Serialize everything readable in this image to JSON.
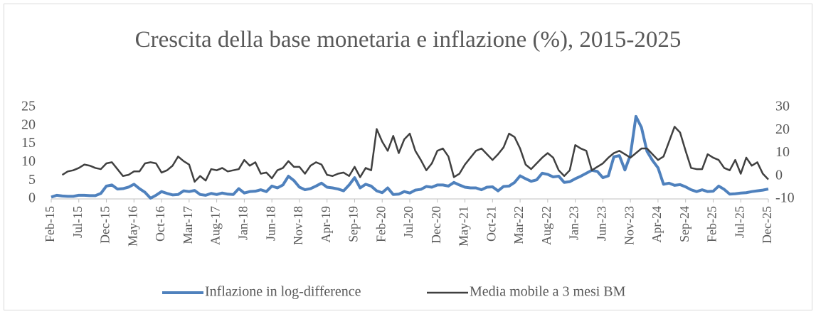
{
  "chart_data": {
    "type": "line",
    "title": "Crescita della base monetaria e inflazione (%), 2015-2025",
    "categories": [
      "Feb-15",
      null,
      null,
      null,
      null,
      "Jul-15",
      null,
      null,
      null,
      null,
      "Dec-15",
      null,
      null,
      null,
      null,
      "May-16",
      null,
      null,
      null,
      null,
      "Oct-16",
      null,
      null,
      null,
      null,
      "Mar-17",
      null,
      null,
      null,
      null,
      "Aug-17",
      null,
      null,
      null,
      null,
      "Jan-18",
      null,
      null,
      null,
      null,
      "Jun-18",
      null,
      null,
      null,
      null,
      "Nov-18",
      null,
      null,
      null,
      null,
      "Apr-19",
      null,
      null,
      null,
      null,
      "Sep-19",
      null,
      null,
      null,
      null,
      "Feb-20",
      null,
      null,
      null,
      null,
      "Jul-20",
      null,
      null,
      null,
      null,
      "Dec-20",
      null,
      null,
      null,
      null,
      "May-21",
      null,
      null,
      null,
      null,
      "Oct-21",
      null,
      null,
      null,
      null,
      "Mar-22",
      null,
      null,
      null,
      null,
      "Aug-22",
      null,
      null,
      null,
      null,
      "Jan-23",
      null,
      null,
      null,
      null,
      "Jun-23",
      null,
      null,
      null,
      null,
      "Nov-23",
      null,
      null,
      null,
      null,
      "Apr-24",
      null,
      null,
      null,
      null,
      "Sep-24",
      null,
      null,
      null,
      null,
      "Feb-25",
      null,
      null,
      null,
      null,
      "Jul-25",
      null,
      null,
      null,
      null,
      "Dec-25"
    ],
    "series": [
      {
        "name": "Inflazione in log-difference",
        "color": "#4f81bd",
        "axis": "y",
        "values": [
          0.5,
          1.0,
          0.8,
          0.7,
          0.7,
          1.0,
          1.0,
          0.9,
          0.9,
          1.5,
          3.5,
          3.8,
          2.7,
          2.8,
          3.2,
          4.0,
          2.8,
          1.8,
          0.2,
          1.0,
          2.0,
          1.5,
          1.1,
          1.2,
          2.2,
          2.0,
          2.3,
          1.2,
          1.0,
          1.5,
          1.2,
          1.6,
          1.3,
          1.2,
          2.8,
          1.6,
          2.0,
          2.1,
          2.5,
          2.0,
          3.5,
          3.0,
          3.8,
          6.2,
          5.0,
          3.2,
          2.5,
          2.8,
          3.5,
          4.3,
          3.2,
          3.0,
          2.7,
          2.2,
          3.8,
          5.8,
          3.0,
          4.0,
          3.5,
          2.2,
          1.7,
          3.0,
          1.2,
          1.3,
          2.0,
          1.6,
          2.4,
          2.6,
          3.4,
          3.2,
          3.8,
          3.8,
          3.5,
          4.5,
          3.8,
          3.2,
          3.0,
          3.0,
          2.5,
          3.2,
          3.3,
          2.2,
          3.4,
          3.5,
          4.5,
          6.3,
          5.5,
          4.8,
          5.2,
          7.0,
          6.7,
          6.0,
          6.2,
          4.5,
          4.7,
          5.5,
          6.2,
          7.0,
          7.8,
          7.5,
          5.8,
          6.3,
          11.5,
          11.8,
          7.9,
          12.0,
          22.5,
          19.5,
          13.0,
          10.5,
          8.5,
          4.0,
          4.3,
          3.7,
          3.9,
          3.3,
          2.5,
          2.0,
          2.5,
          2.0,
          2.1,
          3.5,
          2.6,
          1.3,
          1.4,
          1.6,
          1.7,
          2.0,
          2.2,
          2.4,
          2.7
        ]
      },
      {
        "name": "Media mobile a 3 mesi BM",
        "color": "#404040",
        "axis": "y2",
        "values": [
          null,
          null,
          0.5,
          2,
          2.5,
          3.5,
          5,
          4.5,
          3.5,
          3,
          5.5,
          6,
          3,
          0,
          0.5,
          2,
          2,
          5.5,
          6,
          5.5,
          1.5,
          2.5,
          4.5,
          8.5,
          6.5,
          5,
          -2.5,
          0,
          -2,
          3,
          2.5,
          3.5,
          2,
          2.5,
          3,
          7,
          4.5,
          6,
          1,
          1.5,
          -1,
          2.5,
          3.5,
          6.5,
          4,
          4,
          1,
          4.5,
          6,
          5,
          0.5,
          0,
          1,
          1.5,
          0,
          4,
          -0.5,
          3.5,
          2.5,
          20.5,
          15,
          11,
          17.5,
          10,
          16,
          18.5,
          11,
          7,
          2.5,
          5.5,
          11,
          12,
          8.5,
          -0.5,
          1,
          5,
          8,
          11,
          12,
          9.5,
          7,
          9.5,
          12.5,
          18.5,
          17,
          12,
          5,
          3,
          5.5,
          8,
          10,
          8,
          2.5,
          0,
          2.5,
          13.5,
          12,
          11,
          2.5,
          4,
          5.5,
          8,
          10,
          11,
          9.5,
          8,
          10,
          12,
          12,
          9.5,
          7,
          8.5,
          15,
          21.5,
          19,
          11,
          3.5,
          3,
          3,
          9.5,
          8,
          7,
          3.5,
          2.5,
          7,
          1,
          8,
          4.5,
          6,
          1,
          -1.5
        ]
      }
    ],
    "ylim": [
      0,
      25
    ],
    "yticks": [
      0,
      5,
      10,
      15,
      20,
      25
    ],
    "y2lim": [
      -10,
      30
    ],
    "y2ticks": [
      -10,
      0,
      10,
      20,
      30
    ],
    "grid": false,
    "legend": "bottom"
  }
}
